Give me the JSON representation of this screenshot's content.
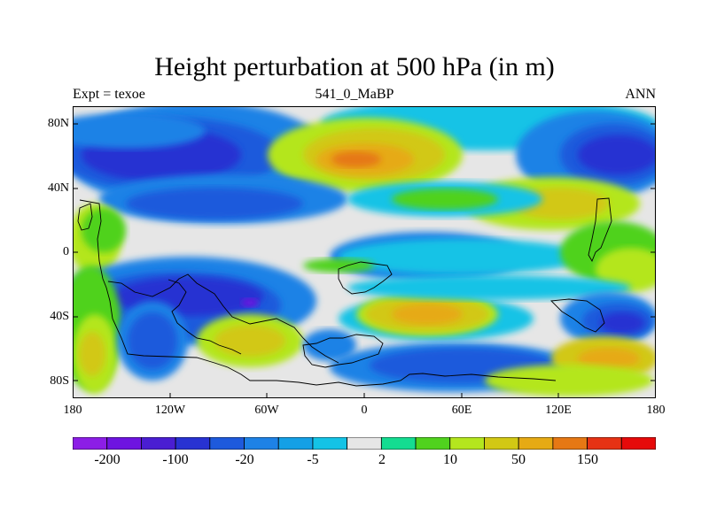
{
  "title": "Height perturbation at 500 hPa (in m)",
  "subtitle_left": "Expt = texoe",
  "subtitle_center": "541_0_MaBP",
  "subtitle_right": "ANN",
  "lat_labels": [
    "80N",
    "40N",
    "0",
    "40S",
    "80S"
  ],
  "lon_labels": [
    "180",
    "120W",
    "60W",
    "0",
    "60E",
    "120E",
    "180"
  ],
  "colorbar": {
    "colors": [
      "#8c1ee6",
      "#6e14e0",
      "#4a1ed2",
      "#2832d2",
      "#1e5adc",
      "#1e82e6",
      "#14a0e6",
      "#14c3e6",
      "#e6e6e6",
      "#14dc91",
      "#50d21e",
      "#b4e61e",
      "#d2c814",
      "#e6aa14",
      "#e67814",
      "#e63214",
      "#e60a0a"
    ],
    "labels": [
      "-200",
      "-100",
      "-20",
      "-5",
      "2",
      "10",
      "50",
      "150"
    ]
  },
  "colors": {
    "strong_neg": "#2832d2",
    "mid_neg": "#1e5adc",
    "light_neg": "#1e82e6",
    "cyan": "#14c3e6",
    "neutral": "#e6e6e6",
    "teal": "#14dc91",
    "green": "#50d21e",
    "yellowgreen": "#b4e61e",
    "yellow": "#d2c814",
    "orange": "#e6aa14",
    "deep_orange": "#e67814",
    "purple": "#6e14e0"
  }
}
